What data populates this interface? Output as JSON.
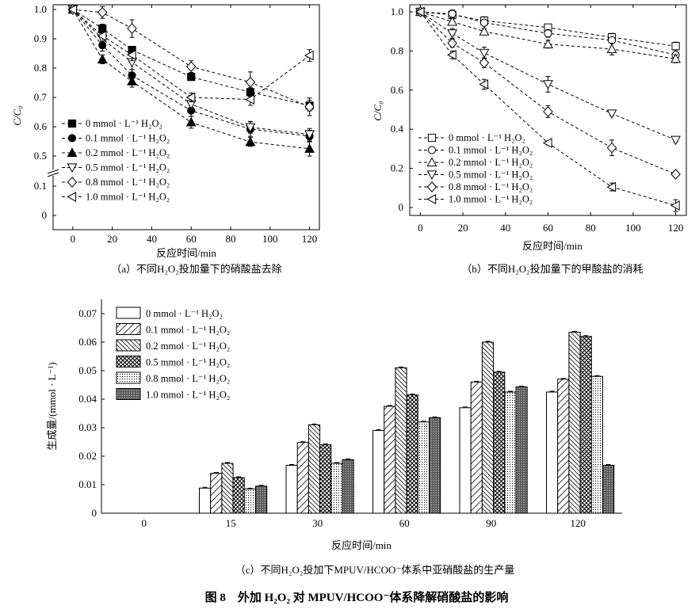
{
  "chart_data": [
    {
      "id": "a",
      "type": "line",
      "caption": "（a）不同H₂O₂投加量下的硝酸盐去除",
      "xlabel": "反应时间/min",
      "ylabel": "C/C₀",
      "xticks": [
        "0",
        "20",
        "40",
        "60",
        "80",
        "100",
        "120"
      ],
      "yticks_upper": [
        "0.5",
        "0.6",
        "0.7",
        "0.8",
        "0.9",
        "1.0"
      ],
      "yticks_lower": [
        "0",
        "0.1"
      ],
      "xlim": [
        -10,
        125
      ],
      "x": [
        0,
        15,
        30,
        60,
        90,
        120
      ],
      "series": [
        {
          "name": "0 mmol · L⁻¹ H₂O₂",
          "marker": "square-filled",
          "values": [
            1.0,
            0.935,
            0.862,
            0.77,
            0.718,
            0.672
          ],
          "err": [
            0,
            0.015,
            0.01,
            0.012,
            0.015,
            0.018
          ]
        },
        {
          "name": "0.1 mmol · L⁻¹ H₂O₂",
          "marker": "circle-filled",
          "values": [
            1.0,
            0.878,
            0.775,
            0.655,
            0.592,
            0.568
          ],
          "err": [
            0,
            0.02,
            0.02,
            0.02,
            0.025,
            0.02
          ]
        },
        {
          "name": "0.2 mmol · L⁻¹ H₂O₂",
          "marker": "triangle-filled",
          "values": [
            1.0,
            0.83,
            0.755,
            0.615,
            0.548,
            0.525
          ],
          "err": [
            0,
            0.015,
            0.02,
            0.02,
            0.015,
            0.025
          ]
        },
        {
          "name": "0.5 mmol · L⁻¹ H₂O₂",
          "marker": "triangle-down",
          "values": [
            1.0,
            0.9,
            0.82,
            0.677,
            0.598,
            0.574
          ],
          "err": [
            0,
            0.02,
            0.025,
            0.03,
            0.02,
            0.02
          ]
        },
        {
          "name": "0.8 mmol · L⁻¹ H₂O₂",
          "marker": "diamond",
          "values": [
            1.0,
            0.99,
            0.935,
            0.805,
            0.752,
            0.668
          ],
          "err": [
            0,
            0.02,
            0.03,
            0.02,
            0.035,
            0.03
          ]
        },
        {
          "name": "1.0 mmol · L⁻¹ H₂O₂",
          "marker": "triangle-left",
          "values": [
            1.0,
            0.91,
            0.845,
            0.7,
            0.693,
            0.843
          ],
          "err": [
            0,
            0.02,
            0.02,
            0.015,
            0.02,
            0.02
          ]
        }
      ]
    },
    {
      "id": "b",
      "type": "line",
      "caption": "（b）不同H₂O₂投加量下的甲酸盐的消耗",
      "xlabel": "反应时间/min",
      "ylabel": "C/C₀",
      "xticks": [
        "0",
        "20",
        "40",
        "60",
        "80",
        "100",
        "120"
      ],
      "yticks": [
        "0",
        "0.2",
        "0.4",
        "0.6",
        "0.8",
        "1.0"
      ],
      "xlim": [
        -5,
        125
      ],
      "ylim": [
        -0.04,
        1.02
      ],
      "x": [
        0,
        15,
        30,
        60,
        90,
        120
      ],
      "series": [
        {
          "name": "0 mmol · L⁻¹ H₂O₂",
          "marker": "square",
          "values": [
            1.0,
            0.985,
            0.955,
            0.92,
            0.87,
            0.825
          ],
          "err": [
            0,
            0.02,
            0.02,
            0.015,
            0.02,
            0.02
          ]
        },
        {
          "name": "0.1 mmol · L⁻¹ H₂O₂",
          "marker": "circle",
          "values": [
            1.0,
            0.99,
            0.945,
            0.89,
            0.855,
            0.78
          ],
          "err": [
            0,
            0.02,
            0.015,
            0.02,
            0.015,
            0.025
          ]
        },
        {
          "name": "0.2 mmol · L⁻¹ H₂O₂",
          "marker": "triangle",
          "values": [
            1.0,
            0.95,
            0.9,
            0.835,
            0.81,
            0.76
          ],
          "err": [
            0,
            0.015,
            0.015,
            0.02,
            0.03,
            0.02
          ]
        },
        {
          "name": "0.5 mmol · L⁻¹ H₂O₂",
          "marker": "triangle-down",
          "values": [
            1.0,
            0.89,
            0.79,
            0.63,
            0.48,
            0.345
          ],
          "err": [
            0,
            0.025,
            0.03,
            0.04,
            0.01,
            0.01
          ]
        },
        {
          "name": "0.8 mmol · L⁻¹ H₂O₂",
          "marker": "diamond",
          "values": [
            1.0,
            0.84,
            0.74,
            0.49,
            0.305,
            0.17
          ],
          "err": [
            0,
            0.02,
            0.025,
            0.03,
            0.04,
            0.015
          ]
        },
        {
          "name": "1.0 mmol · L⁻¹ H₂O₂",
          "marker": "triangle-left",
          "values": [
            1.0,
            0.78,
            0.63,
            0.33,
            0.105,
            0.01
          ],
          "err": [
            0,
            0.02,
            0.025,
            0.01,
            0.02,
            0.03
          ]
        }
      ]
    },
    {
      "id": "c",
      "type": "bar",
      "caption": "（c）不同H₂O₂投加下MPUV/HCOO⁻体系中亚硝酸盐的生产量",
      "xlabel": "反应时间/min",
      "ylabel": "生成量/(mmol · L⁻¹)",
      "categories": [
        "0",
        "15",
        "30",
        "60",
        "90",
        "120"
      ],
      "yticks": [
        "0",
        "0.01",
        "0.02",
        "0.03",
        "0.04",
        "0.05",
        "0.06",
        "0.07"
      ],
      "ylim": [
        0,
        0.07
      ],
      "series": [
        {
          "name": "0 mmol · L⁻¹ H₂O₂",
          "pattern": "white",
          "values": [
            0,
            0.0088,
            0.0168,
            0.029,
            0.037,
            0.0425
          ]
        },
        {
          "name": "0.1 mmol · L⁻¹ H₂O₂",
          "pattern": "diag",
          "values": [
            0,
            0.014,
            0.0248,
            0.0375,
            0.046,
            0.047
          ]
        },
        {
          "name": "0.2 mmol · L⁻¹ H₂O₂",
          "pattern": "dense",
          "values": [
            0,
            0.0175,
            0.031,
            0.051,
            0.06,
            0.0635
          ]
        },
        {
          "name": "0.5 mmol · L⁻¹ H₂O₂",
          "pattern": "cross",
          "values": [
            0,
            0.0125,
            0.024,
            0.0415,
            0.0495,
            0.062
          ]
        },
        {
          "name": "0.8 mmol · L⁻¹ H₂O₂",
          "pattern": "dots",
          "values": [
            0,
            0.0085,
            0.0175,
            0.032,
            0.0425,
            0.048
          ]
        },
        {
          "name": "1.0 mmol · L⁻¹ H₂O₂",
          "pattern": "grid",
          "values": [
            0,
            0.0095,
            0.0188,
            0.0335,
            0.0443,
            0.0168
          ]
        }
      ]
    }
  ],
  "figure_title": "图 8　外加 H₂O₂ 对 MPUV/HCOO⁻体系降解硝酸盐的影响"
}
